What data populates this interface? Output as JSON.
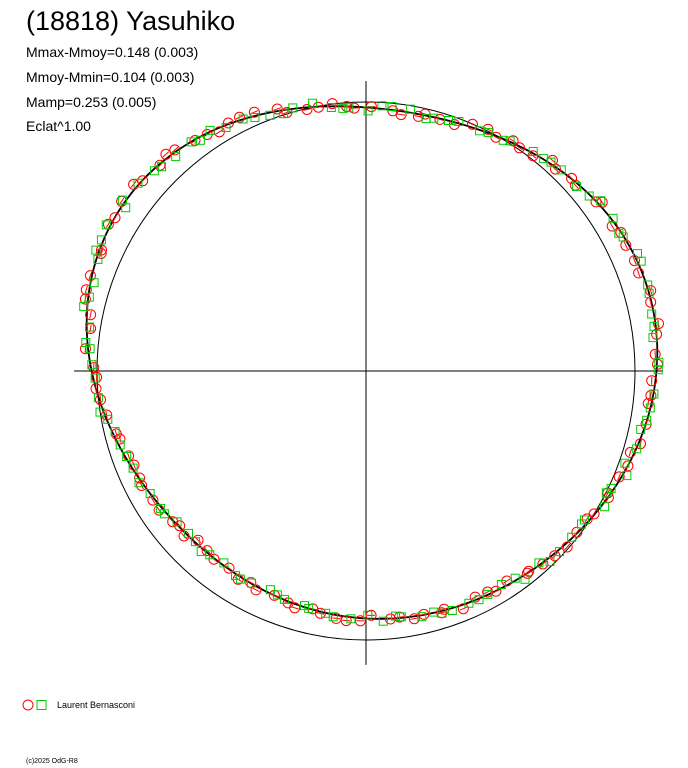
{
  "title": "(18818) Yasuhiko",
  "stats": [
    "Mmax-Mmoy=0.148 (0.003)",
    "Mmoy-Mmin=0.104 (0.003)",
    "Mamp=0.253 (0.005)",
    "Eclat^1.00"
  ],
  "legend": {
    "label": "Laurent Bernasconi"
  },
  "copyright": "(c)2025 OdG-R8",
  "colors": {
    "obs_circle": "#ff0000",
    "obs_square": "#00cc00",
    "curve": "#000000",
    "axes": "#000000"
  },
  "chart_data": {
    "type": "scatter",
    "projection": "polar",
    "description_axes": "radius = magnitude offset, angle = rotational phase; inner reference circle = mean magnitude",
    "reference_circle": {
      "radius": 1.0
    },
    "axes_extent": 1.1,
    "grid": false,
    "legend_position": "bottom-left",
    "model_curve": {
      "mean": 1.0,
      "harmonics": [
        {
          "cos": 0.02,
          "sin": 0.06
        },
        {
          "cos": 0.05,
          "sin": -0.03
        },
        {
          "cos": 0.01,
          "sin": 0.03
        }
      ]
    },
    "series": [
      {
        "name": "Laurent Bernasconi",
        "marker": "circle",
        "observations": 120
      },
      {
        "name": "Laurent Bernasconi",
        "marker": "square",
        "observations": 120
      }
    ]
  }
}
